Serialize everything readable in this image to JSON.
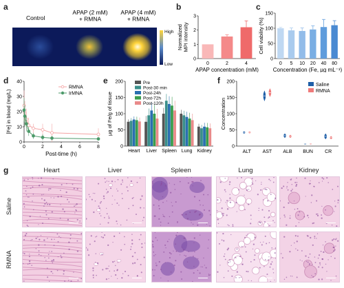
{
  "panel_labels": [
    "a",
    "b",
    "c",
    "d",
    "e",
    "f",
    "g"
  ],
  "panel_a": {
    "labels": [
      "Control",
      "APAP (2 mM)\n+ RMNA",
      "APAP (4 mM)\n+ RMNA"
    ],
    "colorbar": {
      "high": "High",
      "low": "Low"
    },
    "intensities": [
      0.15,
      0.55,
      1.0
    ]
  },
  "chart_data": [
    {
      "id": "b",
      "type": "bar",
      "categories": [
        "0",
        "2",
        "4"
      ],
      "values": [
        1.0,
        1.55,
        2.2
      ],
      "errors": [
        0,
        0.12,
        0.45
      ],
      "xlabel": "APAP concentration (mM)",
      "ylabel": "Normalized\nMPI intensity",
      "ylim": [
        0,
        3
      ],
      "yticks": [
        "0",
        "1",
        "2",
        "3"
      ],
      "colors": [
        "#f9b8b8",
        "#f48989",
        "#ef6a6a"
      ]
    },
    {
      "id": "c",
      "type": "bar",
      "categories": [
        "0",
        "5",
        "10",
        "20",
        "40",
        "80"
      ],
      "values": [
        100,
        93,
        91,
        96,
        104,
        110
      ],
      "errors": [
        3,
        8,
        10,
        12,
        25,
        15
      ],
      "xlabel": "Concentration (Fe, µg mL⁻¹)",
      "ylabel": "Cell viability (%)",
      "ylim": [
        0,
        150
      ],
      "yticks": [
        "0",
        "50",
        "100",
        "150"
      ],
      "colors": [
        "#bfd8f2",
        "#a9cbee",
        "#92bce9",
        "#7aaee3",
        "#5f9cdc",
        "#4a8ad2"
      ]
    },
    {
      "id": "d",
      "type": "line",
      "xlabel": "Post-time (h)",
      "ylabel": "[Fe] in blood (mg/L)",
      "xlim": [
        0,
        8
      ],
      "ylim": [
        0,
        40
      ],
      "xticks": [
        "0",
        "2",
        "4",
        "6",
        "8"
      ],
      "yticks": [
        "0",
        "10",
        "20",
        "30",
        "40"
      ],
      "series": [
        {
          "name": "RMNA",
          "color": "#f4a3a3",
          "x": [
            0,
            0.08,
            0.25,
            0.5,
            1,
            2,
            3,
            8
          ],
          "y": [
            24,
            19,
            15,
            11,
            9,
            8,
            6,
            5
          ],
          "err": [
            10,
            8,
            7,
            5,
            3,
            4,
            6,
            4
          ]
        },
        {
          "name": "IrMNA",
          "color": "#4d9a6a",
          "x": [
            0,
            0.08,
            0.25,
            0.5,
            1,
            2,
            3,
            8
          ],
          "y": [
            21,
            17,
            12,
            7,
            4,
            3,
            2.5,
            2
          ],
          "err": [
            8,
            7,
            5,
            3,
            2,
            2,
            1.5,
            1
          ]
        }
      ]
    },
    {
      "id": "e",
      "type": "bar",
      "categories": [
        "Heart",
        "Liver",
        "Spleen",
        "Lung",
        "Kidney"
      ],
      "ylabel": "µg of Fe/g of tissue",
      "ylim": [
        0,
        200
      ],
      "yticks": [
        "0",
        "50",
        "100",
        "150",
        "200"
      ],
      "series": [
        {
          "name": "Pre",
          "color": "#555555",
          "values": [
            75,
            75,
            100,
            100,
            60
          ]
        },
        {
          "name": "Post-30 min",
          "color": "#3a8f8a",
          "values": [
            78,
            95,
            140,
            95,
            55
          ]
        },
        {
          "name": "Post-24h",
          "color": "#2a6fb0",
          "values": [
            82,
            110,
            130,
            90,
            60
          ]
        },
        {
          "name": "Post-72h",
          "color": "#3a9d4e",
          "values": [
            80,
            100,
            125,
            85,
            58
          ]
        },
        {
          "name": "Post-120h",
          "color": "#e98a8a",
          "values": [
            76,
            85,
            110,
            80,
            55
          ]
        }
      ],
      "errors": [
        12,
        30,
        30,
        20,
        15
      ]
    },
    {
      "id": "f",
      "type": "scatter",
      "categories": [
        "ALT",
        "AST",
        "ALB",
        "BUN",
        "CR"
      ],
      "ylabel": "Concentration",
      "ylim": [
        0,
        200
      ],
      "yticks": [
        "0",
        "50",
        "100",
        "150",
        "200"
      ],
      "series": [
        {
          "name": "Saline",
          "color": "#1f5fa8",
          "values": [
            42,
            155,
            32,
            7,
            30
          ],
          "spread": [
            3,
            15,
            6,
            1,
            8
          ]
        },
        {
          "name": "RMNA",
          "color": "#ef7a7a",
          "values": [
            42,
            165,
            30,
            6,
            26
          ],
          "spread": [
            2,
            12,
            4,
            1,
            4
          ]
        }
      ]
    }
  ],
  "panel_g": {
    "columns": [
      "Heart",
      "Liver",
      "Spleen",
      "Lung",
      "Kidney"
    ],
    "rows": [
      "Saline",
      "RMNA"
    ]
  }
}
